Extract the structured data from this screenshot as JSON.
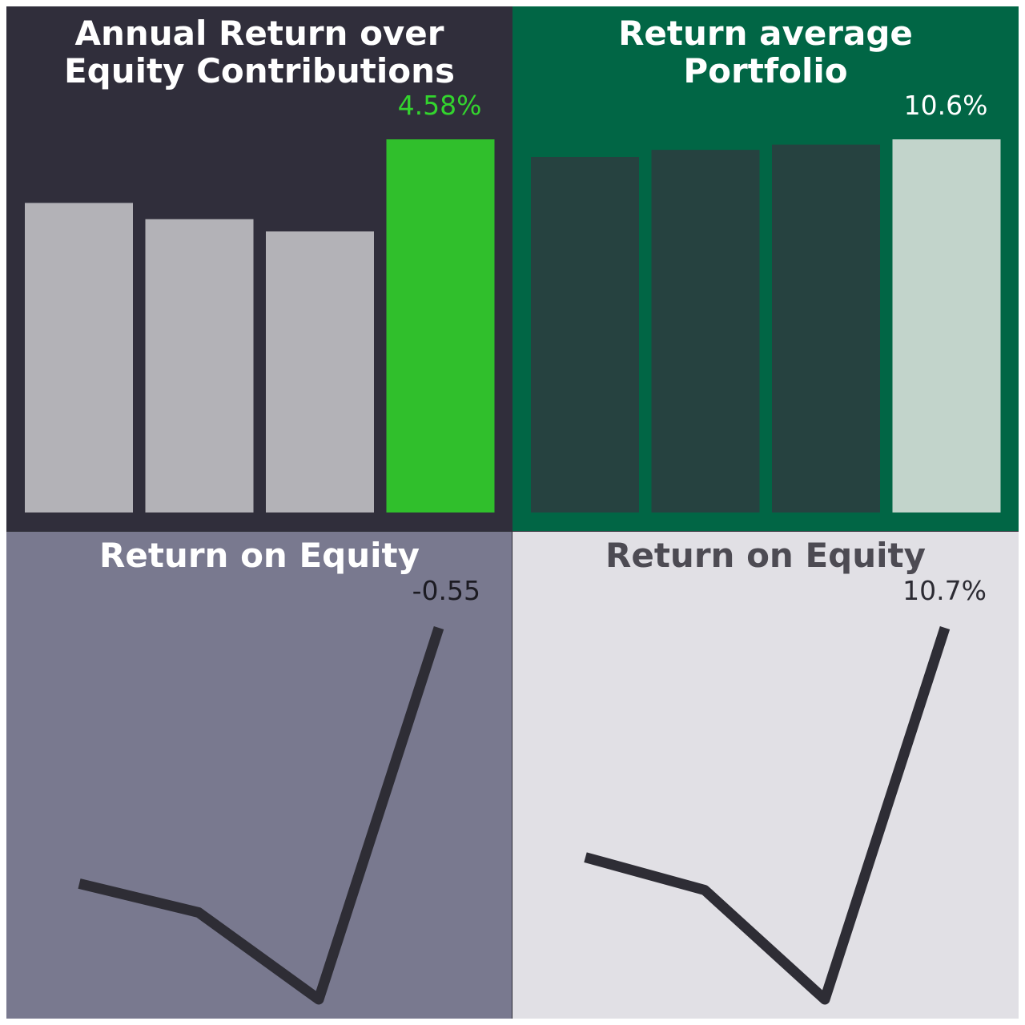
{
  "chart_data": [
    {
      "type": "bar",
      "title_lines": [
        "Annual Return over",
        "Equity Contributions"
      ],
      "categories": [
        "",
        "",
        "",
        ""
      ],
      "values": [
        3.8,
        3.6,
        3.45,
        4.58
      ],
      "value_label": "4.58%",
      "ylim": [
        0,
        4.58
      ],
      "grid": false,
      "colors": {
        "background": "#302e3b",
        "title": "#ffffff",
        "bar": "#b3b2b7",
        "highlight_bar": "#30bf2c",
        "label": "#33d42e"
      }
    },
    {
      "type": "bar",
      "title_lines": [
        "Return average",
        "Portfolio"
      ],
      "categories": [
        "",
        "",
        "",
        ""
      ],
      "values": [
        10.1,
        10.3,
        10.45,
        10.6
      ],
      "value_label": "10.6%",
      "ylim": [
        0,
        10.6
      ],
      "grid": false,
      "colors": {
        "background": "#016645",
        "title": "#ffffff",
        "bar": "#264240",
        "highlight_bar": "#c2d4cb",
        "label": "#ffffff"
      }
    },
    {
      "type": "line",
      "title_lines": [
        "Return on Equity"
      ],
      "x": [
        1,
        2,
        3,
        4
      ],
      "values": [
        -3.2,
        -3.5,
        -4.4,
        -0.55
      ],
      "value_label": "-0.55",
      "ylim": [
        -4.4,
        -0.55
      ],
      "grid": false,
      "colors": {
        "background": "#79798f",
        "title": "#ffffff",
        "line": "#2e2d35",
        "label": "#1c1b22"
      }
    },
    {
      "type": "line",
      "title_lines": [
        "Return on Equity"
      ],
      "x": [
        1,
        2,
        3,
        4
      ],
      "values": [
        8.6,
        8.3,
        7.3,
        10.7
      ],
      "value_label": "10.7%",
      "ylim": [
        7.3,
        10.7
      ],
      "grid": false,
      "colors": {
        "background": "#e1e0e5",
        "title": "#4d4b53",
        "line": "#2e2d35",
        "label": "#2c2b33"
      }
    }
  ]
}
